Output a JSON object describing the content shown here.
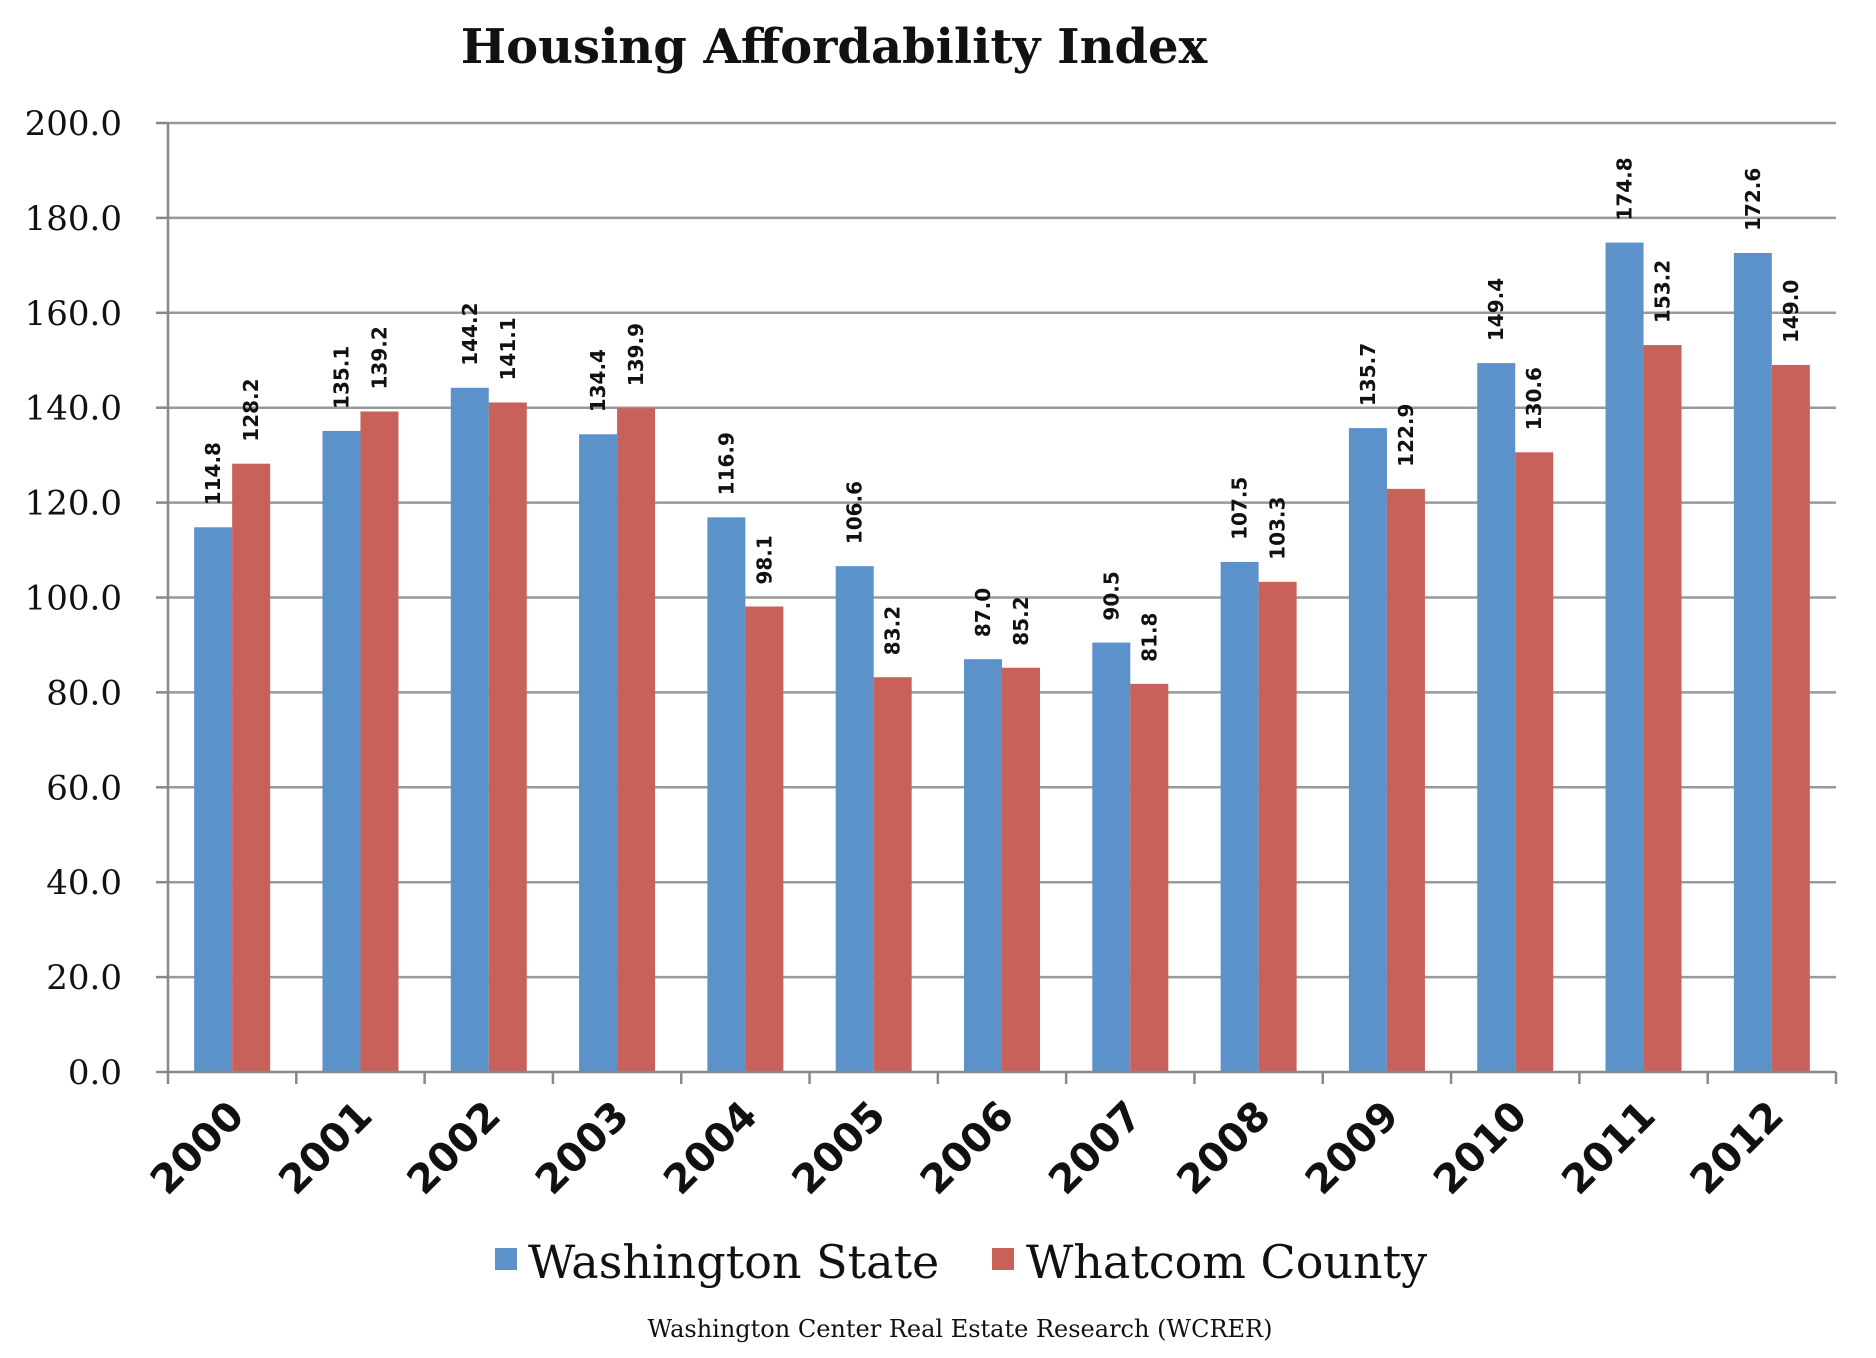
{
  "chart_data": {
    "type": "bar",
    "title": "Housing Affordability Index",
    "xlabel": "",
    "ylabel": "",
    "categories": [
      "2000",
      "2001",
      "2002",
      "2003",
      "2004",
      "2005",
      "2006",
      "2007",
      "2008",
      "2009",
      "2010",
      "2011",
      "2012"
    ],
    "series": [
      {
        "name": "Washington State",
        "color": "#5b92c9",
        "values": [
          114.8,
          135.1,
          144.2,
          134.4,
          116.9,
          106.6,
          87.0,
          90.5,
          107.5,
          135.7,
          149.4,
          174.8,
          172.6
        ],
        "labels": [
          "114.8",
          "135.1",
          "144.2",
          "134.4",
          "116.9",
          "106.6",
          "87.0",
          "90.5",
          "107.5",
          "135.7",
          "149.4",
          "174.8",
          "172.6"
        ]
      },
      {
        "name": "Whatcom County",
        "color": "#c9615b",
        "values": [
          128.2,
          139.2,
          141.1,
          139.9,
          98.1,
          83.2,
          85.2,
          81.8,
          103.3,
          122.9,
          130.6,
          153.2,
          149.0
        ],
        "labels": [
          "128.2",
          "139.2",
          "141.1",
          "139.9",
          "98.1",
          "83.2",
          "85.2",
          "81.8",
          "103.3",
          "122.9",
          "130.6",
          "153.2",
          "149.0"
        ]
      }
    ],
    "ylim": [
      0,
      200
    ],
    "yticks": [
      "0.0",
      "20.0",
      "40.0",
      "60.0",
      "80.0",
      "100.0",
      "120.0",
      "140.0",
      "160.0",
      "180.0",
      "200.0"
    ],
    "grid": true,
    "legend": "bottom",
    "source": "Washington Center Real Estate Research (WCRER)"
  },
  "colors": {
    "grid": "#999999",
    "axis": "#888888"
  }
}
